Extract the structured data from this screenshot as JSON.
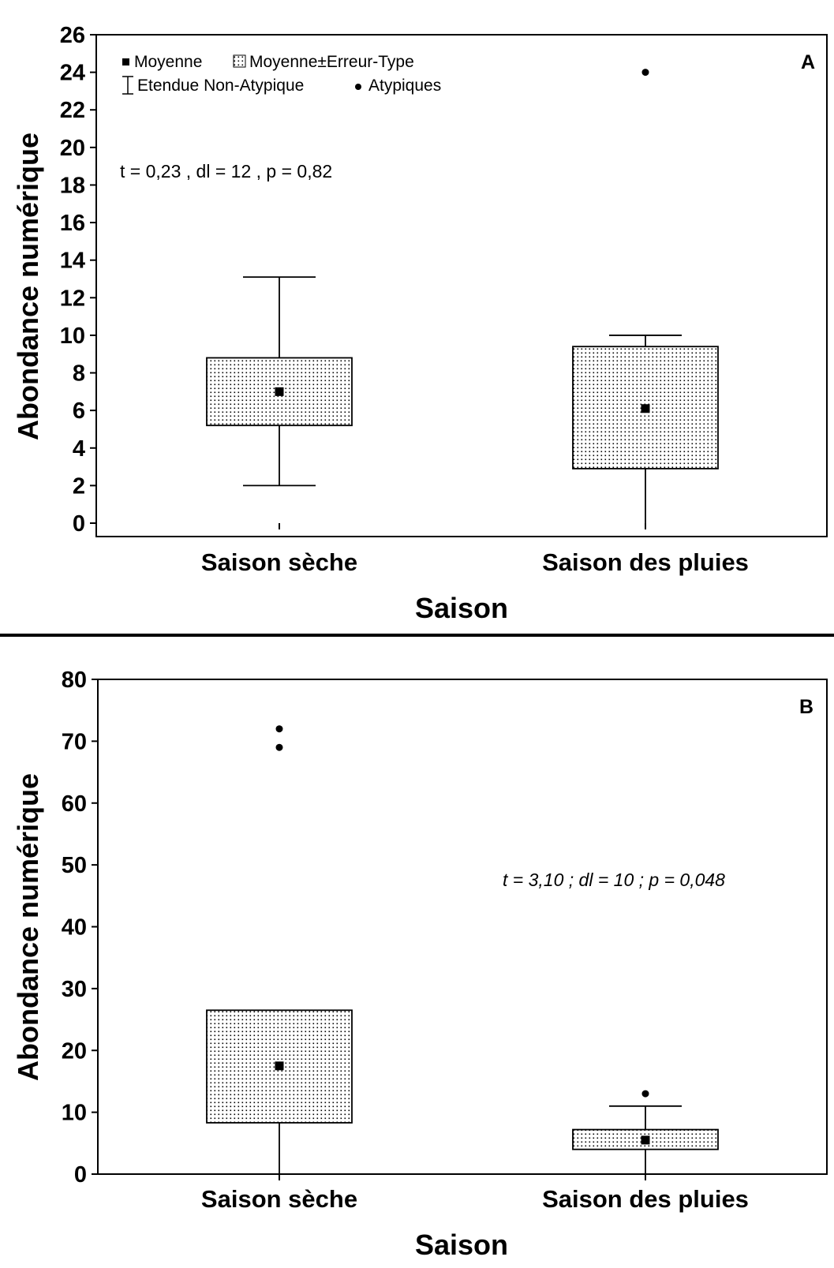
{
  "chart_data": [
    {
      "type": "box",
      "panel_label": "A",
      "xlabel": "Saison",
      "ylabel": "Abondance numérique",
      "categories": [
        "Saison sèche",
        "Saison des pluies"
      ],
      "ylim": [
        0,
        26
      ],
      "yticks": [
        0,
        2,
        4,
        6,
        8,
        10,
        12,
        14,
        16,
        18,
        20,
        22,
        24,
        26
      ],
      "boxes": [
        {
          "category": "Saison sèche",
          "mean": 7.0,
          "se_low": 5.2,
          "se_high": 8.8,
          "whisker_low": 2.0,
          "whisker_high": 13.1,
          "outliers": []
        },
        {
          "category": "Saison des pluies",
          "mean": 6.1,
          "se_low": 2.9,
          "se_high": 9.4,
          "whisker_low": 0.0,
          "whisker_high": 10.0,
          "outliers": [
            24
          ]
        }
      ],
      "annotation": "t = 0,23 , dl = 12  , p = 0,82",
      "legend": {
        "placement": "top-left",
        "entries": [
          "Moyenne",
          "Moyenne±Erreur-Type",
          "Etendue Non-Atypique",
          "Atypiques"
        ]
      }
    },
    {
      "type": "box",
      "panel_label": "B",
      "xlabel": "Saison",
      "ylabel": "Abondance numérique",
      "categories": [
        "Saison sèche",
        "Saison des pluies"
      ],
      "ylim": [
        0,
        80
      ],
      "yticks": [
        0,
        10,
        20,
        30,
        40,
        50,
        60,
        70,
        80
      ],
      "boxes": [
        {
          "category": "Saison sèche",
          "mean": 17.5,
          "se_low": 8.3,
          "se_high": 26.5,
          "whisker_low": 0.0,
          "whisker_high": 26.5,
          "outliers": [
            72,
            69
          ]
        },
        {
          "category": "Saison des pluies",
          "mean": 5.5,
          "se_low": 4.0,
          "se_high": 7.2,
          "whisker_low": 0.0,
          "whisker_high": 11.0,
          "outliers": [
            13
          ]
        }
      ],
      "annotation": "t = 3,10 ; dl = 10 ; p = 0,048"
    }
  ]
}
